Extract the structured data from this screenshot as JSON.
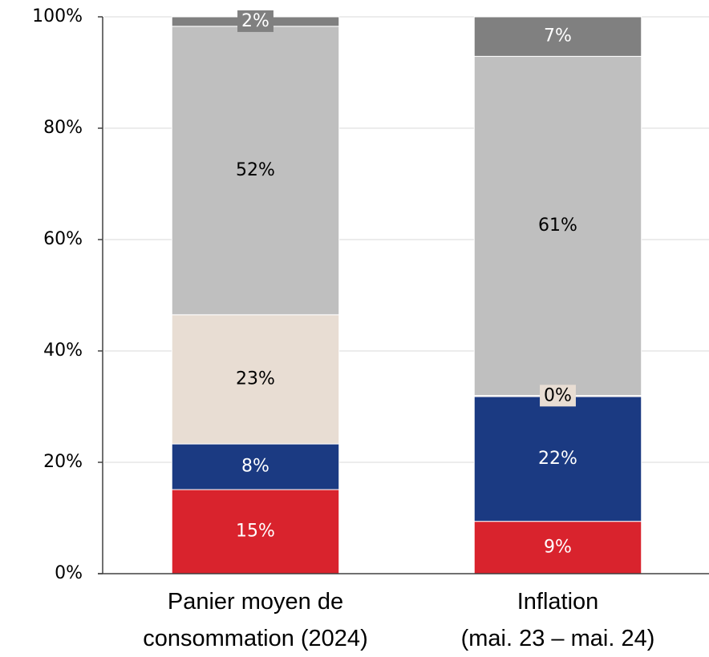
{
  "chart_data": {
    "type": "stacked_bar",
    "categories": [
      "Panier moyen de\nconsommation (2024)",
      "Inflation\n(mai. 23 – mai. 24)"
    ],
    "series": [
      {
        "color": "#d9232d",
        "values": [
          15.1,
          9.4
        ],
        "value_labels": [
          "15%",
          "9%"
        ]
      },
      {
        "color": "#1b3a82",
        "values": [
          8.2,
          22.4
        ],
        "value_labels": [
          "8%",
          "22%"
        ]
      },
      {
        "color": "#e8ddd3",
        "values": [
          23.2,
          0.2
        ],
        "value_labels": [
          "23%",
          "0%"
        ]
      },
      {
        "color": "#bfbfbf",
        "values": [
          51.8,
          60.9
        ],
        "value_labels": [
          "52%",
          "61%"
        ]
      },
      {
        "color": "#808080",
        "values": [
          1.7,
          7.1
        ],
        "value_labels": [
          "2%",
          "7%"
        ]
      }
    ],
    "ylim": [
      0,
      100
    ],
    "yticks": [
      {
        "value": 0,
        "label": "0%"
      },
      {
        "value": 20,
        "label": "20%"
      },
      {
        "value": 40,
        "label": "40%"
      },
      {
        "value": 60,
        "label": "60%"
      },
      {
        "value": 80,
        "label": "80%"
      },
      {
        "value": 100,
        "label": "100%"
      }
    ],
    "grid": true
  }
}
